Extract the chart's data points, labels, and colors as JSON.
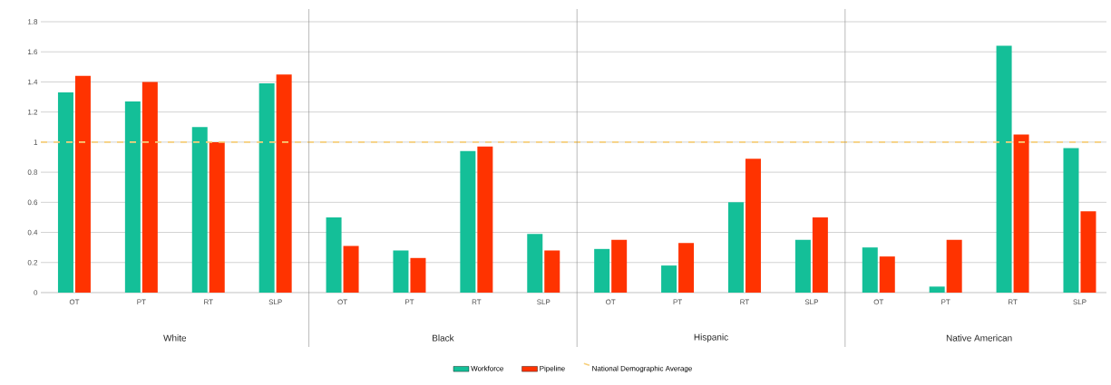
{
  "chart_data": {
    "type": "bar",
    "categories": [
      "OT",
      "PT",
      "RT",
      "SLP",
      "OT",
      "PT",
      "RT",
      "SLP",
      "OT",
      "PT",
      "RT",
      "SLP",
      "OT",
      "PT",
      "RT",
      "SLP"
    ],
    "series": [
      {
        "name": "Workforce",
        "color": "#14bf98",
        "values": [
          1.33,
          1.27,
          1.1,
          1.39,
          0.5,
          0.28,
          0.94,
          0.39,
          0.29,
          0.18,
          0.6,
          0.35,
          0.3,
          0.04,
          1.64,
          0.96
        ]
      },
      {
        "name": "Pipeline",
        "color": "#ff3300",
        "values": [
          1.44,
          1.4,
          1.0,
          1.45,
          0.31,
          0.23,
          0.97,
          0.28,
          0.35,
          0.33,
          0.89,
          0.5,
          0.24,
          0.35,
          1.05,
          0.54
        ]
      }
    ],
    "annotations": [
      "White",
      "Black",
      "Hispanic",
      "Native American"
    ],
    "ref_lines": [
      {
        "axis": "y",
        "value": 1,
        "label": "National Demographic Average",
        "color": "#f7cf7a",
        "line_style": "dashed"
      }
    ],
    "ylim": [
      0,
      1.8
    ],
    "yticks": [
      0,
      0.2,
      0.4,
      0.6,
      0.8,
      1,
      1.2,
      1.4,
      1.6,
      1.8
    ],
    "grid": "y",
    "legend": "bottom"
  }
}
